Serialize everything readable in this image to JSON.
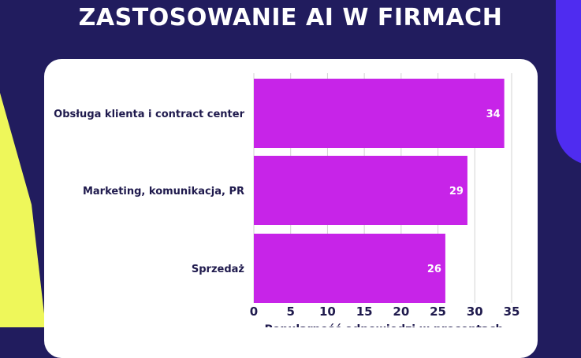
{
  "header": {
    "title": "ZASTOSOWANIE AI W FIRMACH"
  },
  "colors": {
    "background": "#211c5e",
    "bar": "#c724e8",
    "text": "#1f1a4d",
    "grid": "#d3d3d3",
    "accent_yellow": "#eef75a",
    "accent_blue": "#4f2cf0"
  },
  "chart_data": {
    "type": "bar",
    "orientation": "horizontal",
    "categories": [
      "Obsługa klienta i contract center",
      "Marketing, komunikacja, PR",
      "Sprzedaż"
    ],
    "values": [
      34,
      29,
      26
    ],
    "data_labels": [
      "34",
      "29",
      "26"
    ],
    "xlabel": "Popularność odpowiedzi w procentach",
    "xlim": [
      0,
      35
    ],
    "xticks": [
      "0",
      "5",
      "10",
      "15",
      "20",
      "25",
      "30",
      "35"
    ],
    "grid": true
  }
}
